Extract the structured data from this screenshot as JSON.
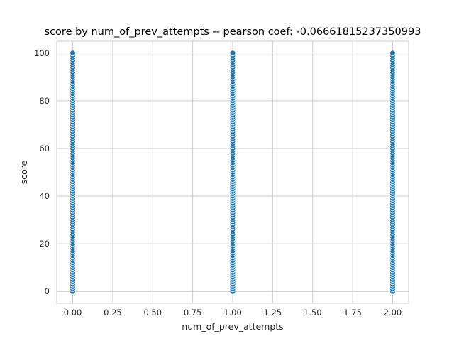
{
  "chart_data": {
    "type": "scatter",
    "title": "score by num_of_prev_attempts -- pearson coef: -0.06661815237350993",
    "xlabel": "num_of_prev_attempts",
    "ylabel": "score",
    "xlim": [
      -0.1,
      2.1
    ],
    "ylim": [
      -5,
      105
    ],
    "xticks": [
      0.0,
      0.25,
      0.5,
      0.75,
      1.0,
      1.25,
      1.5,
      1.75,
      2.0
    ],
    "xtick_labels": [
      "0.00",
      "0.25",
      "0.50",
      "0.75",
      "1.00",
      "1.25",
      "1.50",
      "1.75",
      "2.00"
    ],
    "yticks": [
      0,
      20,
      40,
      60,
      80,
      100
    ],
    "ytick_labels": [
      "0",
      "20",
      "40",
      "60",
      "80",
      "100"
    ],
    "grid": true,
    "point_color": "#1f77b4",
    "point_edge_color": "#ffffff",
    "series": [
      {
        "x": 0,
        "y_range": [
          0,
          100
        ],
        "y_step": 1
      },
      {
        "x": 1,
        "y_range": [
          0,
          100
        ],
        "y_step": 1
      },
      {
        "x": 2,
        "y_range": [
          0,
          100
        ],
        "y_step": 1
      }
    ]
  }
}
